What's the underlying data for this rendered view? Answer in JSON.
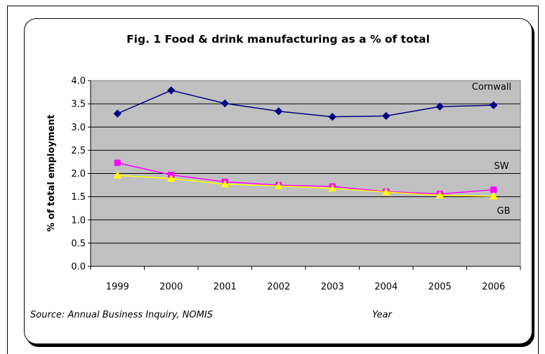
{
  "chart_data": {
    "type": "line",
    "title": "Fig. 1 Food & drink manufacturing as a % of total",
    "xlabel": "Year",
    "ylabel": "% of total employment",
    "source": "Source:  Annual Business Inquiry, NOMIS",
    "categories": [
      "1999",
      "2000",
      "2001",
      "2002",
      "2003",
      "2004",
      "2005",
      "2006"
    ],
    "ylim": [
      0.0,
      4.0
    ],
    "yticks": [
      "0.0",
      "0.5",
      "1.0",
      "1.5",
      "2.0",
      "2.5",
      "3.0",
      "3.5",
      "4.0"
    ],
    "grid": true,
    "series": [
      {
        "name": "Cornwall",
        "color": "#000080",
        "marker": "diamond",
        "values": [
          3.29,
          3.79,
          3.51,
          3.34,
          3.22,
          3.24,
          3.44,
          3.47
        ]
      },
      {
        "name": "SW",
        "color": "#ff00ff",
        "marker": "square",
        "values": [
          2.23,
          1.97,
          1.82,
          1.75,
          1.72,
          1.61,
          1.56,
          1.65
        ]
      },
      {
        "name": "GB",
        "color": "#ffff00",
        "marker": "triangle",
        "values": [
          1.96,
          1.89,
          1.77,
          1.73,
          1.68,
          1.6,
          1.53,
          1.51
        ]
      }
    ]
  }
}
